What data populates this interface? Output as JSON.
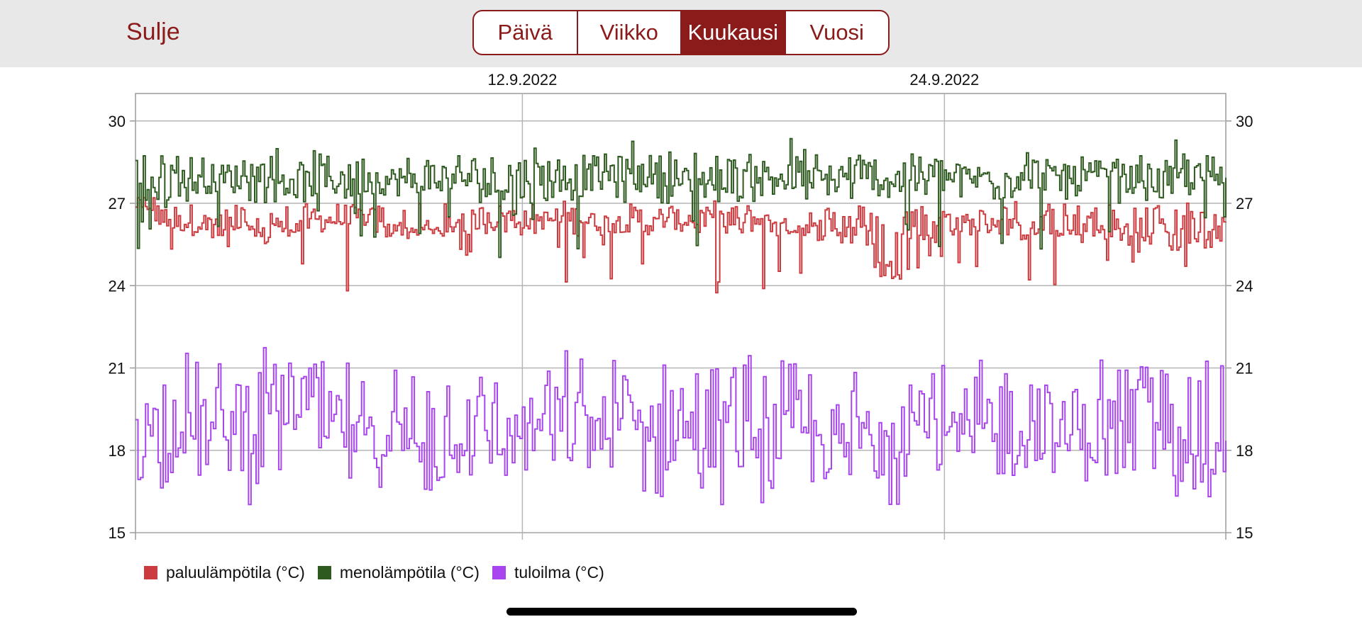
{
  "header": {
    "close_label": "Sulje",
    "tabs": [
      {
        "label": "Päivä",
        "active": false
      },
      {
        "label": "Viikko",
        "active": false
      },
      {
        "label": "Kuukausi",
        "active": true
      },
      {
        "label": "Vuosi",
        "active": false
      }
    ],
    "accent_color": "#8b1a1a"
  },
  "chart_data": {
    "type": "line",
    "x_axis": {
      "type": "date",
      "range": [
        "2022-09-01",
        "2022-10-02"
      ],
      "tick_labels": [
        {
          "label": "12.9.2022",
          "date": "2022-09-12"
        },
        {
          "label": "24.9.2022",
          "date": "2022-09-24"
        }
      ]
    },
    "y_axis": {
      "range": [
        15,
        31
      ],
      "ticks": [
        15,
        18,
        21,
        24,
        27,
        30
      ],
      "labels_left": true,
      "labels_right": true
    },
    "grid": true,
    "series": [
      {
        "name": "paluulämpötila (°C)",
        "color": "#cc3b3f",
        "band": [
          25.8,
          27.0
        ],
        "range": [
          23.7,
          27.2
        ],
        "points": [
          [
            1,
            27.0
          ],
          [
            2,
            26.3
          ],
          [
            3,
            25.9
          ],
          [
            4,
            25.8
          ],
          [
            5,
            26.1
          ],
          [
            6,
            26.4
          ],
          [
            7,
            26.5
          ],
          [
            8,
            26.0
          ],
          [
            9,
            25.9
          ],
          [
            10,
            26.4
          ],
          [
            11,
            26.6
          ],
          [
            12,
            26.4
          ],
          [
            13,
            26.5
          ],
          [
            14,
            26.3
          ],
          [
            15,
            26.2
          ],
          [
            16,
            26.4
          ],
          [
            17,
            26.5
          ],
          [
            18,
            26.3
          ],
          [
            19,
            26.1
          ],
          [
            20,
            26.0
          ],
          [
            21,
            25.8
          ],
          [
            22,
            24.6
          ],
          [
            23,
            25.9
          ],
          [
            24,
            26.2
          ],
          [
            25,
            26.3
          ],
          [
            26,
            26.0
          ],
          [
            27,
            25.9
          ],
          [
            28,
            26.0
          ],
          [
            29,
            25.7
          ],
          [
            30,
            25.6
          ],
          [
            31,
            25.7
          ]
        ]
      },
      {
        "name": "menolämpötila (°C)",
        "color": "#2e5a1f",
        "band": [
          27.0,
          28.8
        ],
        "range": [
          25.0,
          29.6
        ],
        "points": [
          [
            1,
            27.3
          ],
          [
            2,
            27.8
          ],
          [
            3,
            27.9
          ],
          [
            4,
            28.1
          ],
          [
            5,
            27.7
          ],
          [
            6,
            27.8
          ],
          [
            7,
            27.9
          ],
          [
            8,
            27.8
          ],
          [
            9,
            28.0
          ],
          [
            10,
            27.9
          ],
          [
            11,
            27.6
          ],
          [
            12,
            27.9
          ],
          [
            13,
            28.0
          ],
          [
            14,
            28.2
          ],
          [
            15,
            28.1
          ],
          [
            16,
            27.8
          ],
          [
            17,
            27.9
          ],
          [
            18,
            28.1
          ],
          [
            19,
            27.9
          ],
          [
            20,
            27.8
          ],
          [
            21,
            28.0
          ],
          [
            22,
            27.8
          ],
          [
            23,
            28.2
          ],
          [
            24,
            27.9
          ],
          [
            25,
            27.9
          ],
          [
            26,
            28.0
          ],
          [
            27,
            27.8
          ],
          [
            28,
            28.0
          ],
          [
            29,
            27.9
          ],
          [
            30,
            27.8
          ],
          [
            31,
            27.9
          ]
        ]
      },
      {
        "name": "tuloilma (°C)",
        "color": "#a845ee",
        "band": [
          16.8,
          21.3
        ],
        "range": [
          16.0,
          21.8
        ],
        "points": [
          [
            1,
            18.8
          ],
          [
            2,
            19.0
          ],
          [
            3,
            18.5
          ],
          [
            4,
            19.8
          ],
          [
            5,
            19.9
          ],
          [
            6,
            18.8
          ],
          [
            7,
            18.0
          ],
          [
            8,
            18.5
          ],
          [
            9,
            17.6
          ],
          [
            10,
            18.9
          ],
          [
            11,
            18.2
          ],
          [
            12,
            18.6
          ],
          [
            13,
            18.7
          ],
          [
            14,
            18.7
          ],
          [
            15,
            18.9
          ],
          [
            16,
            18.5
          ],
          [
            17,
            18.0
          ],
          [
            18,
            18.4
          ],
          [
            19,
            18.6
          ],
          [
            20,
            18.2
          ],
          [
            21,
            17.8
          ],
          [
            22,
            19.2
          ],
          [
            23,
            19.8
          ],
          [
            24,
            18.0
          ],
          [
            25,
            18.3
          ],
          [
            26,
            19.0
          ],
          [
            27,
            18.5
          ],
          [
            28,
            18.2
          ],
          [
            29,
            18.3
          ],
          [
            30,
            19.3
          ],
          [
            31,
            17.2
          ]
        ]
      }
    ]
  }
}
